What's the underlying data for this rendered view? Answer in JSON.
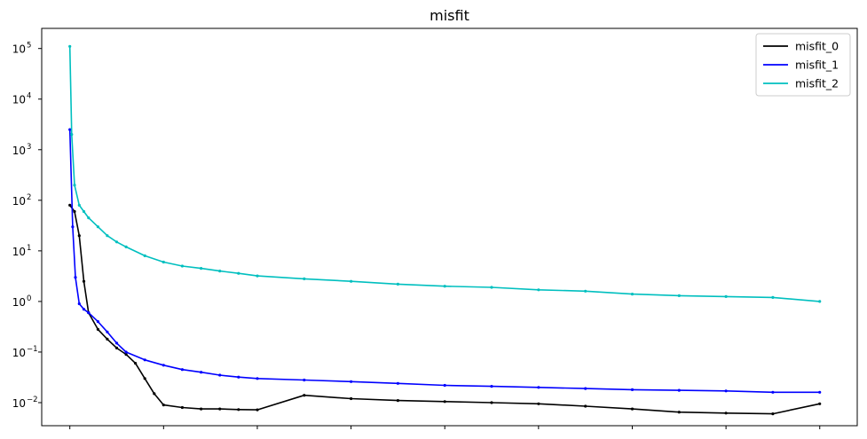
{
  "chart_data": {
    "type": "line",
    "title": "misfit",
    "xlabel": "",
    "ylabel": "",
    "yscale": "log",
    "ylim": [
      0.0035,
      250000
    ],
    "xlim": [
      -3,
      84
    ],
    "x_ticks": [
      0,
      10,
      20,
      30,
      40,
      50,
      60,
      70,
      80
    ],
    "x_tick_labels": [
      "",
      "",
      "",
      "",
      "",
      "",
      "",
      "",
      ""
    ],
    "y_ticks": [
      {
        "value": 0.01,
        "base": "10",
        "exp": "−2"
      },
      {
        "value": 0.1,
        "base": "10",
        "exp": "−1"
      },
      {
        "value": 1,
        "base": "10",
        "exp": "0"
      },
      {
        "value": 10,
        "base": "10",
        "exp": "1"
      },
      {
        "value": 100,
        "base": "10",
        "exp": "2"
      },
      {
        "value": 1000,
        "base": "10",
        "exp": "3"
      },
      {
        "value": 10000,
        "base": "10",
        "exp": "4"
      },
      {
        "value": 100000,
        "base": "10",
        "exp": "5"
      }
    ],
    "legend": {
      "position": "top-right"
    },
    "grid": false,
    "series": [
      {
        "name": "misfit_0",
        "color": "#000000",
        "x": [
          0,
          0.5,
          1,
          1.5,
          2,
          3,
          4,
          5,
          6,
          7,
          8,
          9,
          10,
          12,
          14,
          16,
          18,
          20,
          25,
          30,
          35,
          40,
          45,
          50,
          55,
          60,
          65,
          70,
          75,
          80
        ],
        "values": [
          80,
          60,
          20,
          2.5,
          0.6,
          0.28,
          0.18,
          0.12,
          0.09,
          0.06,
          0.03,
          0.015,
          0.009,
          0.008,
          0.0075,
          0.0075,
          0.0073,
          0.0072,
          0.014,
          0.012,
          0.011,
          0.0105,
          0.01,
          0.0095,
          0.0085,
          0.0075,
          0.0065,
          0.0062,
          0.006,
          0.0095
        ]
      },
      {
        "name": "misfit_1",
        "color": "#0000ff",
        "x": [
          0,
          0.3,
          0.6,
          1,
          1.5,
          2,
          3,
          4,
          5,
          6,
          8,
          10,
          12,
          14,
          16,
          18,
          20,
          25,
          30,
          35,
          40,
          45,
          50,
          55,
          60,
          65,
          70,
          75,
          80
        ],
        "values": [
          2500,
          30,
          3,
          0.9,
          0.7,
          0.6,
          0.4,
          0.25,
          0.15,
          0.1,
          0.07,
          0.055,
          0.045,
          0.04,
          0.035,
          0.032,
          0.03,
          0.028,
          0.026,
          0.024,
          0.022,
          0.021,
          0.02,
          0.019,
          0.018,
          0.0175,
          0.017,
          0.016,
          0.016
        ]
      },
      {
        "name": "misfit_2",
        "color": "#00bfbf",
        "x": [
          0,
          0.2,
          0.5,
          1,
          1.5,
          2,
          3,
          4,
          5,
          6,
          8,
          10,
          12,
          14,
          16,
          18,
          20,
          25,
          30,
          35,
          40,
          45,
          50,
          55,
          60,
          65,
          70,
          75,
          80
        ],
        "values": [
          110000,
          2000,
          200,
          80,
          60,
          45,
          30,
          20,
          15,
          12,
          8,
          6,
          5,
          4.5,
          4,
          3.6,
          3.2,
          2.8,
          2.5,
          2.2,
          2,
          1.9,
          1.7,
          1.6,
          1.4,
          1.3,
          1.25,
          1.2,
          1.0
        ]
      }
    ]
  }
}
